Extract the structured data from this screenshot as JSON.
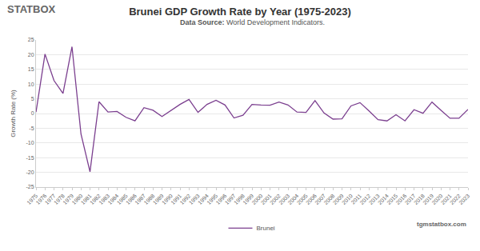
{
  "chart_data": {
    "type": "line",
    "title": "Brunei GDP Growth Rate by Year (1975-2023)",
    "subtitle": "Data Source: World Development Indicators.",
    "y_label": "Growth Rate (%)",
    "logo_text": "STATBOX",
    "source_site": "tgmstatbox.com",
    "x": [
      1975,
      1976,
      1977,
      1978,
      1979,
      1980,
      1981,
      1982,
      1983,
      1984,
      1985,
      1986,
      1987,
      1988,
      1989,
      1990,
      1991,
      1992,
      1993,
      1994,
      1995,
      1996,
      1997,
      1998,
      1999,
      2000,
      2001,
      2002,
      2003,
      2004,
      2005,
      2006,
      2007,
      2008,
      2009,
      2010,
      2011,
      2012,
      2013,
      2014,
      2015,
      2016,
      2017,
      2018,
      2019,
      2020,
      2021,
      2022,
      2023
    ],
    "series": [
      {
        "name": "Brunei",
        "color": "#7b3f8f",
        "values": [
          0.5,
          20.2,
          11.2,
          6.8,
          22.7,
          -7,
          -19.8,
          4.0,
          0.5,
          0.7,
          -1.3,
          -2.5,
          2.0,
          1.1,
          -1.0,
          1.1,
          3.1,
          4.8,
          0.4,
          3.1,
          4.5,
          2.9,
          -1.5,
          -0.6,
          3.1,
          2.9,
          2.8,
          3.9,
          2.9,
          0.5,
          0.4,
          4.4,
          0.2,
          -1.9,
          -1.8,
          2.6,
          3.7,
          0.9,
          -2.1,
          -2.5,
          -0.4,
          -2.5,
          1.3,
          0.1,
          3.9,
          1.1,
          -1.6,
          -1.6,
          1.4
        ]
      }
    ],
    "xlim": [
      1975,
      2023
    ],
    "xticks": [
      1975,
      1976,
      1977,
      1978,
      1979,
      1980,
      1981,
      1982,
      1983,
      1984,
      1985,
      1986,
      1987,
      1988,
      1989,
      1990,
      1991,
      1992,
      1993,
      1994,
      1995,
      1996,
      1997,
      1998,
      1999,
      2000,
      2001,
      2002,
      2003,
      2004,
      2005,
      2006,
      2007,
      2008,
      2009,
      2010,
      2011,
      2012,
      2013,
      2014,
      2015,
      2016,
      2017,
      2018,
      2019,
      2020,
      2021,
      2022,
      2023
    ],
    "ylim": [
      -25,
      25
    ],
    "yticks": [
      -25,
      -20,
      -15,
      -10,
      -5,
      0,
      5,
      10,
      15,
      20,
      25
    ],
    "grid": true,
    "legend": "bottom"
  }
}
